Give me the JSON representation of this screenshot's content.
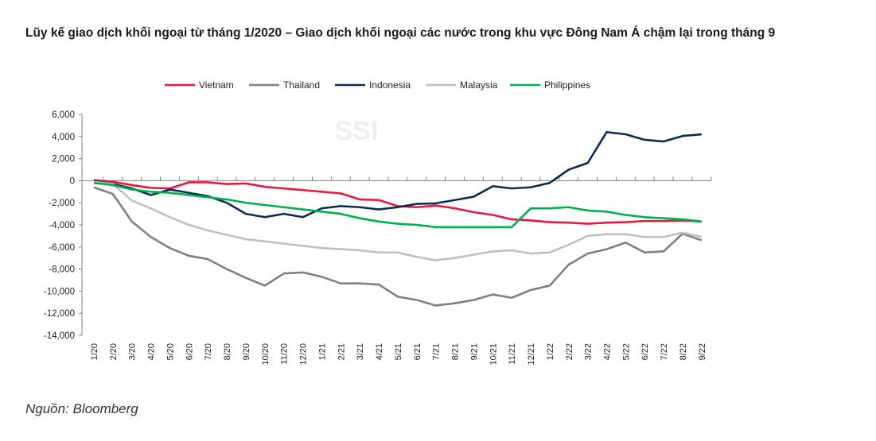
{
  "title": "Lũy kế giao dịch khối ngoại từ tháng 1/2020 – Giao dịch khối ngoại các nước trong khu vực Đông Nam Á chậm lại trong tháng 9",
  "source": "Nguồn: Bloomberg",
  "watermark": "SSI",
  "chart_data": {
    "type": "line",
    "title": "Lũy kế giao dịch khối ngoại từ tháng 1/2020",
    "xlabel": "",
    "ylabel": "",
    "ylim": [
      -14000,
      6000
    ],
    "yticks": [
      6000,
      4000,
      2000,
      0,
      -2000,
      -4000,
      -6000,
      -8000,
      -10000,
      -12000,
      -14000
    ],
    "ytick_labels": [
      "6,000",
      "4,000",
      "2,000",
      "0",
      "-2,000",
      "-4,000",
      "-6,000",
      "-8,000",
      "-10,000",
      "-12,000",
      "-14,000"
    ],
    "legend": "top",
    "categories": [
      "1/20",
      "2/20",
      "3/20",
      "4/20",
      "5/20",
      "6/20",
      "7/20",
      "8/20",
      "9/20",
      "10/20",
      "11/20",
      "12/20",
      "1/21",
      "2/21",
      "3/21",
      "4/21",
      "5/21",
      "6/21",
      "7/21",
      "8/21",
      "9/21",
      "10/21",
      "11/21",
      "12/21",
      "1/22",
      "2/22",
      "3/22",
      "4/22",
      "5/22",
      "6/22",
      "7/22",
      "8/22",
      "9/22"
    ],
    "series": [
      {
        "name": "Vietnam",
        "color": "#e8193c",
        "values": [
          50,
          -100,
          -400,
          -650,
          -700,
          -150,
          -150,
          -300,
          -250,
          -550,
          -700,
          -850,
          -1000,
          -1150,
          -1700,
          -1750,
          -2300,
          -2400,
          -2250,
          -2500,
          -2850,
          -3100,
          -3500,
          -3600,
          -3750,
          -3800,
          -3900,
          -3800,
          -3750,
          -3650,
          -3650,
          -3600,
          -3700
        ]
      },
      {
        "name": "Thailand",
        "color": "#808080",
        "values": [
          -600,
          -1200,
          -3700,
          -5100,
          -6100,
          -6800,
          -7100,
          -8000,
          -8800,
          -9500,
          -8400,
          -8300,
          -8700,
          -9300,
          -9300,
          -9400,
          -10500,
          -10800,
          -11300,
          -11100,
          -10800,
          -10300,
          -10600,
          -9900,
          -9500,
          -7600,
          -6600,
          -6200,
          -5600,
          -6500,
          -6400,
          -4800,
          -5400
        ]
      },
      {
        "name": "Indonesia",
        "color": "#0b2d55",
        "values": [
          0,
          -300,
          -700,
          -1300,
          -800,
          -1100,
          -1400,
          -2000,
          -3000,
          -3300,
          -3000,
          -3300,
          -2500,
          -2300,
          -2400,
          -2600,
          -2400,
          -2100,
          -2050,
          -1750,
          -1450,
          -500,
          -700,
          -600,
          -200,
          1000,
          1600,
          4400,
          4200,
          3700,
          3550,
          4050,
          4200
        ]
      },
      {
        "name": "Malaysia",
        "color": "#c0c0c0",
        "values": [
          -100,
          -300,
          -1800,
          -2500,
          -3300,
          -4000,
          -4500,
          -4900,
          -5300,
          -5500,
          -5700,
          -5900,
          -6100,
          -6200,
          -6300,
          -6500,
          -6500,
          -6900,
          -7200,
          -7000,
          -6700,
          -6400,
          -6300,
          -6600,
          -6500,
          -5800,
          -5000,
          -4850,
          -4850,
          -5100,
          -5100,
          -4700,
          -5100
        ]
      },
      {
        "name": "Philippines",
        "color": "#00b050",
        "values": [
          -200,
          -400,
          -800,
          -1000,
          -1100,
          -1300,
          -1500,
          -1700,
          -2000,
          -2200,
          -2400,
          -2600,
          -2800,
          -3000,
          -3400,
          -3700,
          -3900,
          -4000,
          -4200,
          -4200,
          -4200,
          -4200,
          -4200,
          -2500,
          -2500,
          -2400,
          -2700,
          -2800,
          -3100,
          -3300,
          -3400,
          -3500,
          -3700
        ]
      }
    ]
  }
}
